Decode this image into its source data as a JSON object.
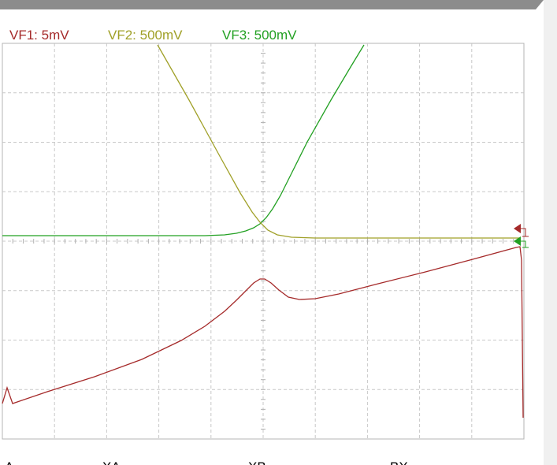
{
  "channels": [
    {
      "label": "VF1: 5mV",
      "color": "#a52a2a"
    },
    {
      "label": "VF2: 500mV",
      "color": "#a0a028"
    },
    {
      "label": "VF3: 500mV",
      "color": "#22a022"
    }
  ],
  "footer": [
    "A",
    "XA",
    "XB",
    "BX"
  ]
}
